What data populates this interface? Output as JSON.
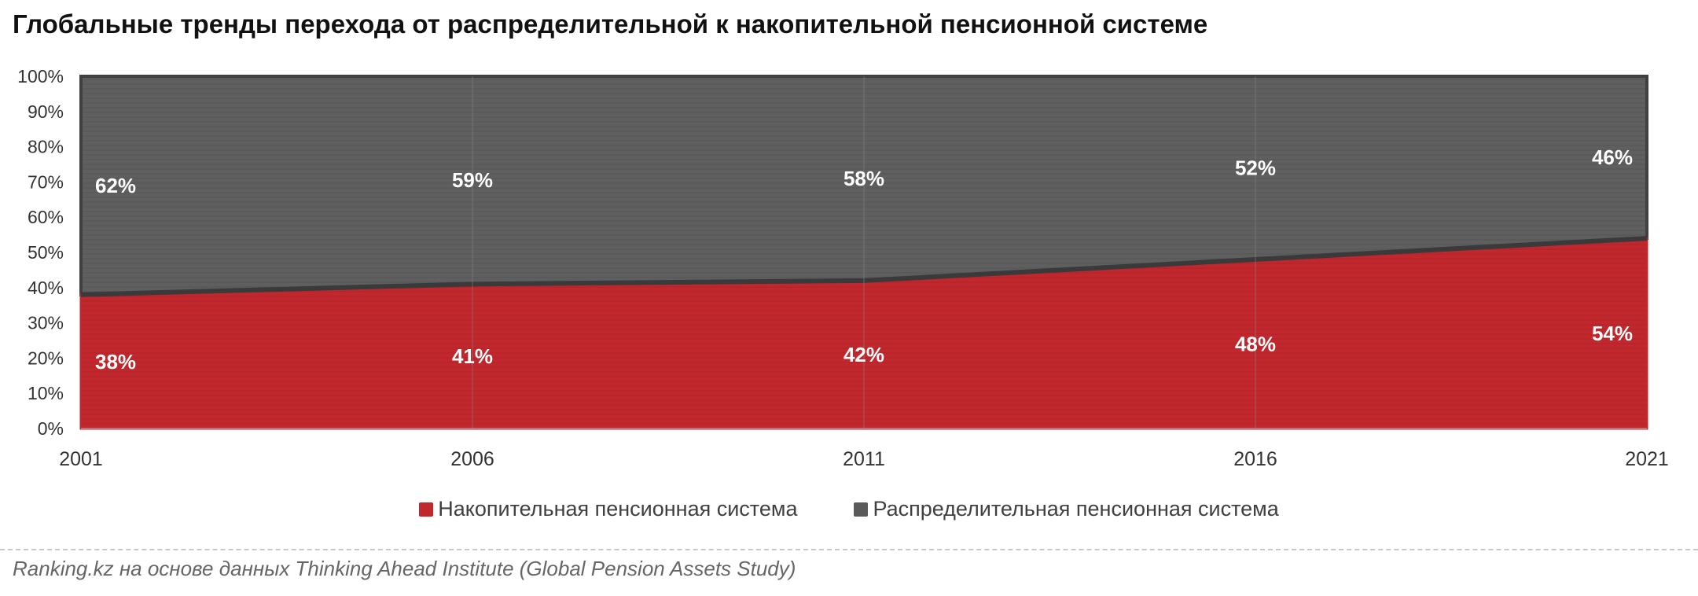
{
  "title": "Глобальные тренды перехода от распределительной к накопительной пенсионной системе",
  "source": "Ranking.kz на основе данных Thinking Ahead Institute (Global Pension Assets Study)",
  "colors": {
    "funded": "#c0282e",
    "paygo": "#5a5a5a",
    "boundary": "#3a3a3a"
  },
  "chart_data": {
    "type": "area",
    "stacked": true,
    "x": [
      "2001",
      "2006",
      "2011",
      "2016",
      "2021"
    ],
    "series": [
      {
        "name": "Накопительная пенсионная система",
        "values": [
          38,
          41,
          42,
          48,
          54
        ],
        "labels": [
          "38%",
          "41%",
          "42%",
          "48%",
          "54%"
        ]
      },
      {
        "name": "Распределительная пенсионная система",
        "values": [
          62,
          59,
          58,
          52,
          46
        ],
        "labels": [
          "62%",
          "59%",
          "58%",
          "52%",
          "46%"
        ]
      }
    ],
    "yticks": [
      "0%",
      "10%",
      "20%",
      "30%",
      "40%",
      "50%",
      "60%",
      "70%",
      "80%",
      "90%",
      "100%"
    ],
    "ylim": [
      0,
      100
    ],
    "grid": "vertical",
    "legend_position": "bottom"
  }
}
